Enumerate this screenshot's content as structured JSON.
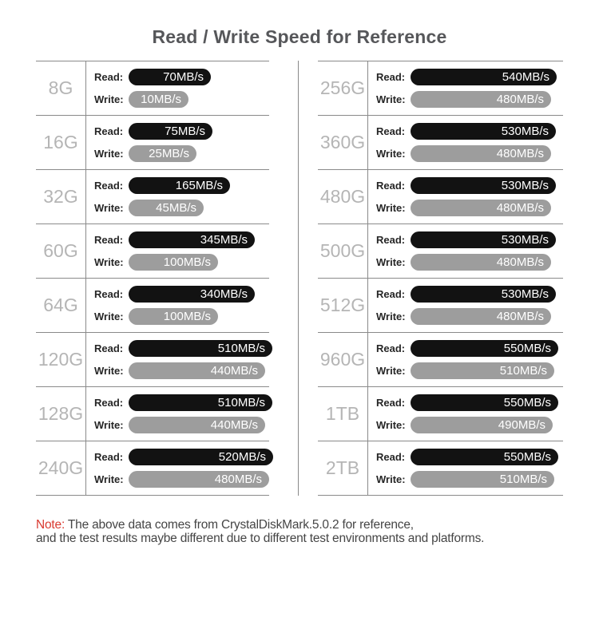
{
  "title": "Read / Write Speed for Reference",
  "labels": {
    "read": "Read:",
    "write": "Write:"
  },
  "colors": {
    "read_bar": "#121212",
    "write_bar": "#9d9d9d",
    "capacity_label": "#b5b5b5",
    "divider_line": "#8a8a8a",
    "note_red": "#d93a30",
    "title_text": "#56575a",
    "body_text": "#454545"
  },
  "note": {
    "prefix": "Note:",
    "line1": " The above data comes from CrystalDiskMark.5.0.2 for reference,",
    "line2": "and the test results maybe different due to different test environments and platforms."
  },
  "chart_data": {
    "type": "bar",
    "orientation": "horizontal",
    "title": "Read / Write Speed for Reference",
    "unit": "MB/s",
    "series_names": [
      "Read",
      "Write"
    ],
    "xlim": [
      0,
      550
    ],
    "grid": false,
    "layout": "two-column table, 8 capacities per column, read bar black and write bar gray per capacity",
    "groups": [
      {
        "capacity": "8G",
        "read": 70,
        "write": 10
      },
      {
        "capacity": "16G",
        "read": 75,
        "write": 25
      },
      {
        "capacity": "32G",
        "read": 165,
        "write": 45
      },
      {
        "capacity": "60G",
        "read": 345,
        "write": 100
      },
      {
        "capacity": "64G",
        "read": 340,
        "write": 100
      },
      {
        "capacity": "120G",
        "read": 510,
        "write": 440
      },
      {
        "capacity": "128G",
        "read": 510,
        "write": 440
      },
      {
        "capacity": "240G",
        "read": 520,
        "write": 480
      },
      {
        "capacity": "256G",
        "read": 540,
        "write": 480
      },
      {
        "capacity": "360G",
        "read": 530,
        "write": 480
      },
      {
        "capacity": "480G",
        "read": 530,
        "write": 480
      },
      {
        "capacity": "500G",
        "read": 530,
        "write": 480
      },
      {
        "capacity": "512G",
        "read": 530,
        "write": 480
      },
      {
        "capacity": "960G",
        "read": 550,
        "write": 510
      },
      {
        "capacity": "1TB",
        "read": 550,
        "write": 490
      },
      {
        "capacity": "2TB",
        "read": 550,
        "write": 510
      }
    ]
  }
}
